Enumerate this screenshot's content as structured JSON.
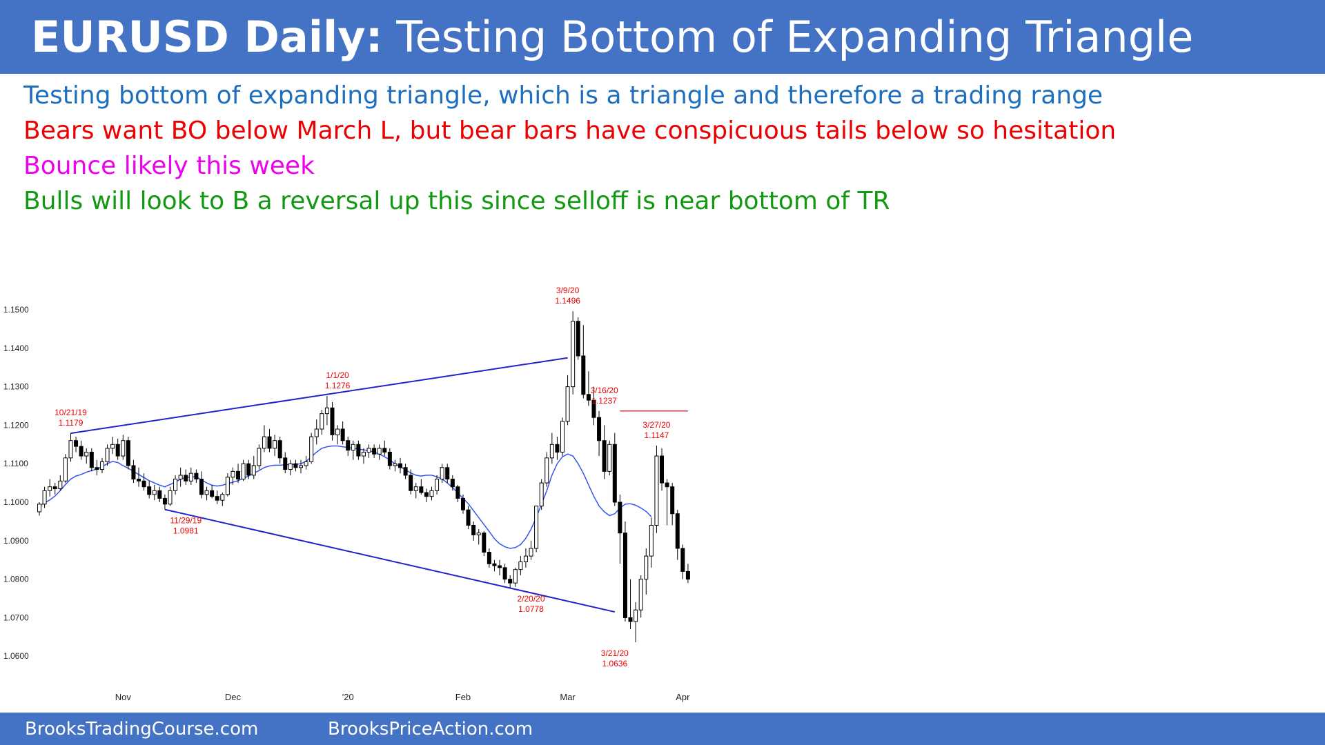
{
  "header": {
    "title_bold": "EURUSD Daily:",
    "title_rest": " Testing Bottom of Expanding Triangle"
  },
  "notes": [
    {
      "text": "Testing bottom of expanding triangle, which is a triangle and therefore a trading range",
      "color": "#1f6fbf"
    },
    {
      "text": "Bears want BO below March L, but bear bars have conspicuous tails below so hesitation",
      "color": "#ee0000"
    },
    {
      "text": "Bounce likely this week",
      "color": "#ee00ee"
    },
    {
      "text": "Bulls will look to B a reversal up this since selloff is near bottom of TR",
      "color": "#119911"
    }
  ],
  "footer": {
    "left": "BrooksTradingCourse.com",
    "right": "BrooksPriceAction.com"
  },
  "chart_data": {
    "type": "candlestick",
    "title": "",
    "ylim": [
      1.055,
      1.155
    ],
    "y_ticks": [
      "1.1500",
      "1.1400",
      "1.1300",
      "1.1200",
      "1.1100",
      "1.1000",
      "1.0900",
      "1.0800",
      "1.0700",
      "1.0600"
    ],
    "x_tick_labels": [
      {
        "label": "Nov",
        "bar": 16
      },
      {
        "label": "Dec",
        "bar": 37
      },
      {
        "label": "'20",
        "bar": 59
      },
      {
        "label": "Feb",
        "bar": 81
      },
      {
        "label": "Mar",
        "bar": 101
      },
      {
        "label": "Apr",
        "bar": 123
      }
    ],
    "candles": [
      [
        1.0975,
        1.1,
        1.0965,
        1.0995
      ],
      [
        1.0995,
        1.104,
        1.0985,
        1.103
      ],
      [
        1.103,
        1.106,
        1.1015,
        1.104
      ],
      [
        1.104,
        1.105,
        1.102,
        1.1035
      ],
      [
        1.1035,
        1.107,
        1.103,
        1.1055
      ],
      [
        1.1055,
        1.1125,
        1.105,
        1.1115
      ],
      [
        1.1115,
        1.1179,
        1.1105,
        1.116
      ],
      [
        1.116,
        1.117,
        1.113,
        1.1145
      ],
      [
        1.1145,
        1.116,
        1.111,
        1.112
      ],
      [
        1.112,
        1.114,
        1.11,
        1.113
      ],
      [
        1.113,
        1.114,
        1.108,
        1.109
      ],
      [
        1.109,
        1.111,
        1.107,
        1.1085
      ],
      [
        1.1085,
        1.1115,
        1.1075,
        1.1105
      ],
      [
        1.1105,
        1.115,
        1.1095,
        1.114
      ],
      [
        1.114,
        1.117,
        1.1125,
        1.115
      ],
      [
        1.115,
        1.1165,
        1.111,
        1.112
      ],
      [
        1.112,
        1.1175,
        1.111,
        1.116
      ],
      [
        1.116,
        1.117,
        1.1085,
        1.1095
      ],
      [
        1.1095,
        1.111,
        1.105,
        1.106
      ],
      [
        1.106,
        1.109,
        1.104,
        1.1055
      ],
      [
        1.1055,
        1.1075,
        1.103,
        1.104
      ],
      [
        1.104,
        1.1055,
        1.101,
        1.102
      ],
      [
        1.102,
        1.1045,
        1.1005,
        1.103
      ],
      [
        1.103,
        1.104,
        1.1,
        1.101
      ],
      [
        1.101,
        1.102,
        1.0981,
        1.0995
      ],
      [
        1.0995,
        1.104,
        1.099,
        1.103
      ],
      [
        1.103,
        1.107,
        1.102,
        1.106
      ],
      [
        1.106,
        1.109,
        1.104,
        1.107
      ],
      [
        1.107,
        1.1085,
        1.1045,
        1.1055
      ],
      [
        1.1055,
        1.109,
        1.1045,
        1.1075
      ],
      [
        1.1075,
        1.1085,
        1.105,
        1.106
      ],
      [
        1.106,
        1.108,
        1.101,
        1.102
      ],
      [
        1.102,
        1.104,
        1.1005,
        1.103
      ],
      [
        1.103,
        1.1045,
        1.101,
        1.1015
      ],
      [
        1.1015,
        1.103,
        1.0995,
        1.1005
      ],
      [
        1.1005,
        1.1025,
        1.099,
        1.102
      ],
      [
        1.102,
        1.1075,
        1.1015,
        1.1065
      ],
      [
        1.1065,
        1.109,
        1.1045,
        1.108
      ],
      [
        1.108,
        1.11,
        1.105,
        1.106
      ],
      [
        1.106,
        1.111,
        1.1055,
        1.11
      ],
      [
        1.11,
        1.111,
        1.106,
        1.107
      ],
      [
        1.107,
        1.112,
        1.106,
        1.1095
      ],
      [
        1.1095,
        1.115,
        1.1085,
        1.114
      ],
      [
        1.114,
        1.12,
        1.113,
        1.117
      ],
      [
        1.117,
        1.119,
        1.113,
        1.114
      ],
      [
        1.114,
        1.1175,
        1.112,
        1.116
      ],
      [
        1.116,
        1.117,
        1.11,
        1.1115
      ],
      [
        1.1115,
        1.113,
        1.1075,
        1.1085
      ],
      [
        1.1085,
        1.111,
        1.107,
        1.11
      ],
      [
        1.11,
        1.111,
        1.108,
        1.109
      ],
      [
        1.109,
        1.111,
        1.1075,
        1.1095
      ],
      [
        1.1095,
        1.112,
        1.1085,
        1.1105
      ],
      [
        1.1105,
        1.118,
        1.11,
        1.117
      ],
      [
        1.117,
        1.1215,
        1.115,
        1.119
      ],
      [
        1.119,
        1.124,
        1.1175,
        1.123
      ],
      [
        1.123,
        1.1276,
        1.12,
        1.1245
      ],
      [
        1.1245,
        1.126,
        1.116,
        1.1175
      ],
      [
        1.1175,
        1.12,
        1.115,
        1.119
      ],
      [
        1.119,
        1.121,
        1.115,
        1.116
      ],
      [
        1.116,
        1.117,
        1.112,
        1.1135
      ],
      [
        1.1135,
        1.116,
        1.111,
        1.115
      ],
      [
        1.115,
        1.116,
        1.111,
        1.112
      ],
      [
        1.112,
        1.114,
        1.11,
        1.113
      ],
      [
        1.113,
        1.115,
        1.1115,
        1.114
      ],
      [
        1.114,
        1.115,
        1.1115,
        1.1125
      ],
      [
        1.1125,
        1.115,
        1.111,
        1.114
      ],
      [
        1.114,
        1.116,
        1.112,
        1.113
      ],
      [
        1.113,
        1.114,
        1.1085,
        1.1095
      ],
      [
        1.1095,
        1.111,
        1.108,
        1.11
      ],
      [
        1.11,
        1.1115,
        1.1075,
        1.109
      ],
      [
        1.109,
        1.11,
        1.106,
        1.107
      ],
      [
        1.107,
        1.1085,
        1.102,
        1.103
      ],
      [
        1.103,
        1.105,
        1.101,
        1.104
      ],
      [
        1.104,
        1.106,
        1.102,
        1.1025
      ],
      [
        1.1025,
        1.1035,
        1.1,
        1.1015
      ],
      [
        1.1015,
        1.104,
        1.1005,
        1.103
      ],
      [
        1.103,
        1.107,
        1.102,
        1.106
      ],
      [
        1.106,
        1.11,
        1.105,
        1.109
      ],
      [
        1.109,
        1.11,
        1.105,
        1.106
      ],
      [
        1.106,
        1.107,
        1.103,
        1.104
      ],
      [
        1.104,
        1.1045,
        1.1,
        1.101
      ],
      [
        1.101,
        1.102,
        1.097,
        1.098
      ],
      [
        1.098,
        1.099,
        1.093,
        1.094
      ],
      [
        1.094,
        1.095,
        1.09,
        1.0915
      ],
      [
        1.0915,
        1.093,
        1.089,
        1.092
      ],
      [
        1.092,
        1.0925,
        1.086,
        1.087
      ],
      [
        1.087,
        1.088,
        1.083,
        1.084
      ],
      [
        1.084,
        1.085,
        1.082,
        1.0835
      ],
      [
        1.0835,
        1.085,
        1.081,
        1.083
      ],
      [
        1.083,
        1.084,
        1.079,
        1.08
      ],
      [
        1.08,
        1.081,
        1.0778,
        1.079
      ],
      [
        1.079,
        1.083,
        1.078,
        1.0825
      ],
      [
        1.0825,
        1.086,
        1.081,
        1.0845
      ],
      [
        1.0845,
        1.088,
        1.083,
        1.086
      ],
      [
        1.086,
        1.09,
        1.085,
        1.088
      ],
      [
        1.088,
        1.099,
        1.087,
        1.099
      ],
      [
        1.099,
        1.106,
        1.098,
        1.105
      ],
      [
        1.105,
        1.113,
        1.104,
        1.1115
      ],
      [
        1.1115,
        1.118,
        1.11,
        1.115
      ],
      [
        1.115,
        1.117,
        1.111,
        1.113
      ],
      [
        1.113,
        1.122,
        1.112,
        1.121
      ],
      [
        1.121,
        1.133,
        1.12,
        1.13
      ],
      [
        1.13,
        1.1496,
        1.128,
        1.147
      ],
      [
        1.147,
        1.148,
        1.137,
        1.138
      ],
      [
        1.138,
        1.146,
        1.127,
        1.128
      ],
      [
        1.128,
        1.134,
        1.125,
        1.1265
      ],
      [
        1.1265,
        1.13,
        1.12,
        1.122
      ],
      [
        1.122,
        1.1237,
        1.112,
        1.116
      ],
      [
        1.116,
        1.12,
        1.106,
        1.108
      ],
      [
        1.108,
        1.116,
        1.107,
        1.115
      ],
      [
        1.115,
        1.118,
        1.099,
        1.1
      ],
      [
        1.1,
        1.102,
        1.084,
        1.092
      ],
      [
        1.092,
        1.095,
        1.069,
        1.07
      ],
      [
        1.07,
        1.08,
        1.067,
        1.069
      ],
      [
        1.069,
        1.074,
        1.0636,
        1.072
      ],
      [
        1.072,
        1.081,
        1.07,
        1.08
      ],
      [
        1.08,
        1.088,
        1.076,
        1.086
      ],
      [
        1.086,
        1.096,
        1.083,
        1.094
      ],
      [
        1.094,
        1.1147,
        1.092,
        1.112
      ],
      [
        1.112,
        1.114,
        1.103,
        1.105
      ],
      [
        1.105,
        1.106,
        1.094,
        1.104
      ],
      [
        1.104,
        1.105,
        1.094,
        1.097
      ],
      [
        1.097,
        1.098,
        1.085,
        1.088
      ],
      [
        1.088,
        1.089,
        1.08,
        1.082
      ],
      [
        1.082,
        1.084,
        1.079,
        1.08
      ]
    ],
    "ema_20": [
      1.099,
      1.0998,
      1.1006,
      1.1016,
      1.103,
      1.1046,
      1.106,
      1.1068,
      1.1072,
      1.1078,
      1.1082,
      1.1086,
      1.1092,
      1.11,
      1.1106,
      1.1103,
      1.1095,
      1.1088,
      1.108,
      1.1072,
      1.1064,
      1.1056,
      1.105,
      1.1044,
      1.104,
      1.1046,
      1.1052,
      1.106,
      1.1064,
      1.1066,
      1.1066,
      1.1058,
      1.105,
      1.1044,
      1.1042,
      1.1044,
      1.1048,
      1.1052,
      1.1056,
      1.1062,
      1.1068,
      1.1075,
      1.1082,
      1.109,
      1.1094,
      1.1096,
      1.1096,
      1.1097,
      1.1098,
      1.1098,
      1.11,
      1.1106,
      1.1118,
      1.113,
      1.114,
      1.1144,
      1.1146,
      1.1146,
      1.1144,
      1.1142,
      1.114,
      1.1138,
      1.1136,
      1.1134,
      1.113,
      1.1125,
      1.1118,
      1.111,
      1.11,
      1.1092,
      1.1084,
      1.1076,
      1.107,
      1.1068,
      1.107,
      1.107,
      1.1066,
      1.106,
      1.105,
      1.1038,
      1.1024,
      1.101,
      1.0996,
      1.0978,
      1.096,
      1.0942,
      1.0924,
      1.0905,
      1.0892,
      1.0884,
      1.088,
      1.0882,
      1.089,
      1.0906,
      1.093,
      1.096,
      1.0995,
      1.103,
      1.107,
      1.11,
      1.1118,
      1.1125,
      1.112,
      1.11,
      1.1075,
      1.1045,
      1.1015,
      1.099,
      1.0975,
      1.0965,
      1.097,
      1.0985,
      1.0995,
      1.0996,
      1.0992,
      1.0985,
      1.0976,
      1.0962
    ],
    "trendlines": [
      {
        "from": {
          "bar": 6,
          "y": 1.1179
        },
        "to": {
          "bar": 101,
          "y": 1.1375
        },
        "color": "#2222cc"
      },
      {
        "from": {
          "bar": 24,
          "y": 1.0981
        },
        "to": {
          "bar": 110,
          "y": 1.0715
        },
        "color": "#2222cc"
      }
    ],
    "resistance_line": {
      "from_bar": 111,
      "to_bar": 124,
      "y": 1.1237,
      "color": "#ee3333"
    },
    "annotations": [
      {
        "date": "10/21/19",
        "price": "1.1179",
        "bar": 6,
        "y": 1.1179,
        "pos": "above"
      },
      {
        "date": "11/29/19",
        "price": "1.0981",
        "bar": 28,
        "y": 1.0981,
        "pos": "below"
      },
      {
        "date": "1/1/20",
        "price": "1.1276",
        "bar": 57,
        "y": 1.1276,
        "pos": "above"
      },
      {
        "date": "2/20/20",
        "price": "1.0778",
        "bar": 94,
        "y": 1.0778,
        "pos": "below"
      },
      {
        "date": "3/9/20",
        "price": "1.1496",
        "bar": 101,
        "y": 1.1496,
        "pos": "above"
      },
      {
        "date": "3/16/20",
        "price": "1.1237",
        "bar": 108,
        "y": 1.1237,
        "pos": "above"
      },
      {
        "date": "3/21/20",
        "price": "1.0636",
        "bar": 110,
        "y": 1.0636,
        "pos": "below"
      },
      {
        "date": "3/27/20",
        "price": "1.1147",
        "bar": 118,
        "y": 1.1147,
        "pos": "above"
      }
    ],
    "colors": {
      "bull_body": "#ffffff",
      "bear_body": "#000000",
      "ema": "#3355ee",
      "annotation": "#ee0000",
      "axis_text": "#222222"
    }
  }
}
